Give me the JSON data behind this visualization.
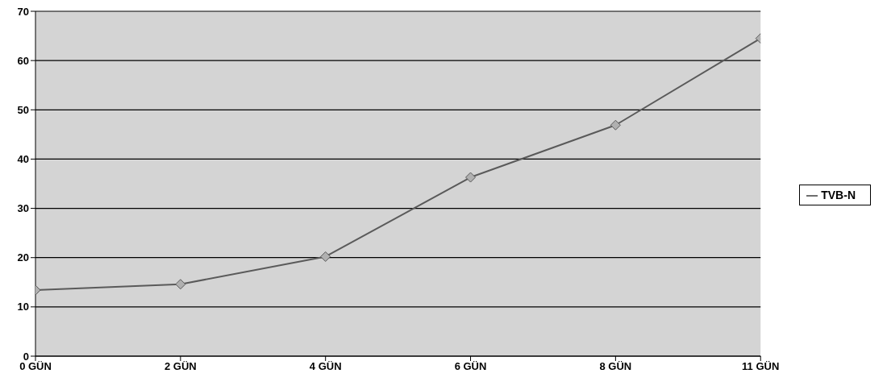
{
  "chart_data": {
    "type": "line",
    "categories": [
      "0 GÜN",
      "2 GÜN",
      "4 GÜN",
      "6 GÜN",
      "8 GÜN",
      "11 GÜN"
    ],
    "series": [
      {
        "name": "TVB-N",
        "color": "#5a5a5a",
        "values": [
          13.4,
          14.6,
          20.2,
          36.3,
          46.9,
          64.5
        ]
      }
    ],
    "ylim": [
      0,
      70
    ],
    "yticks": [
      0,
      10,
      20,
      30,
      40,
      50,
      60,
      70
    ],
    "grid": "y",
    "legend": "right",
    "marker": "diamond",
    "line_style": "solid"
  }
}
